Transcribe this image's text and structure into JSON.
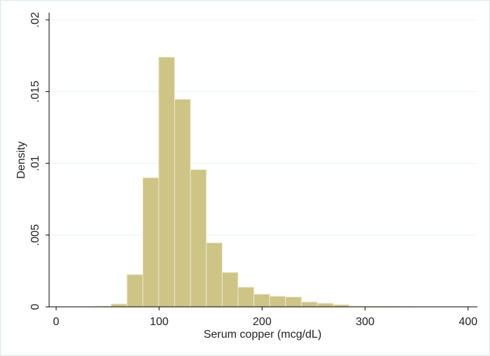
{
  "chart_data": {
    "type": "histogram",
    "x_label": "Serum copper (mcg/dL)",
    "y_label": "Density",
    "bins": [
      38,
      53.4,
      68.8,
      84.2,
      99.6,
      115,
      130.4,
      145.8,
      161.2,
      176.6,
      192,
      207.4,
      222.8,
      238.2,
      253.6,
      269,
      284.4,
      299.8,
      315.2,
      330.6,
      346
    ],
    "values": [
      5e-05,
      0.0002,
      0.00225,
      0.009,
      0.0174,
      0.01446,
      0.00956,
      0.00446,
      0.0024,
      0.00137,
      0.00088,
      0.00074,
      0.00069,
      0.00034,
      0.00025,
      0.00015,
      5e-05,
      4e-05,
      3e-05,
      2e-05
    ],
    "color": "#cdc486",
    "xlim": [
      -6.8,
      409
    ],
    "xticks": [
      0,
      100,
      200,
      300,
      400
    ],
    "ylim": [
      0,
      0.0205
    ],
    "yticks": [
      0,
      {
        "value": 0.005,
        "label": ".005"
      },
      {
        "value": 0.01,
        "label": ".01"
      },
      {
        "value": 0.015,
        "label": ".015"
      },
      {
        "value": 0.02,
        "label": ".02"
      }
    ],
    "grid": true
  }
}
